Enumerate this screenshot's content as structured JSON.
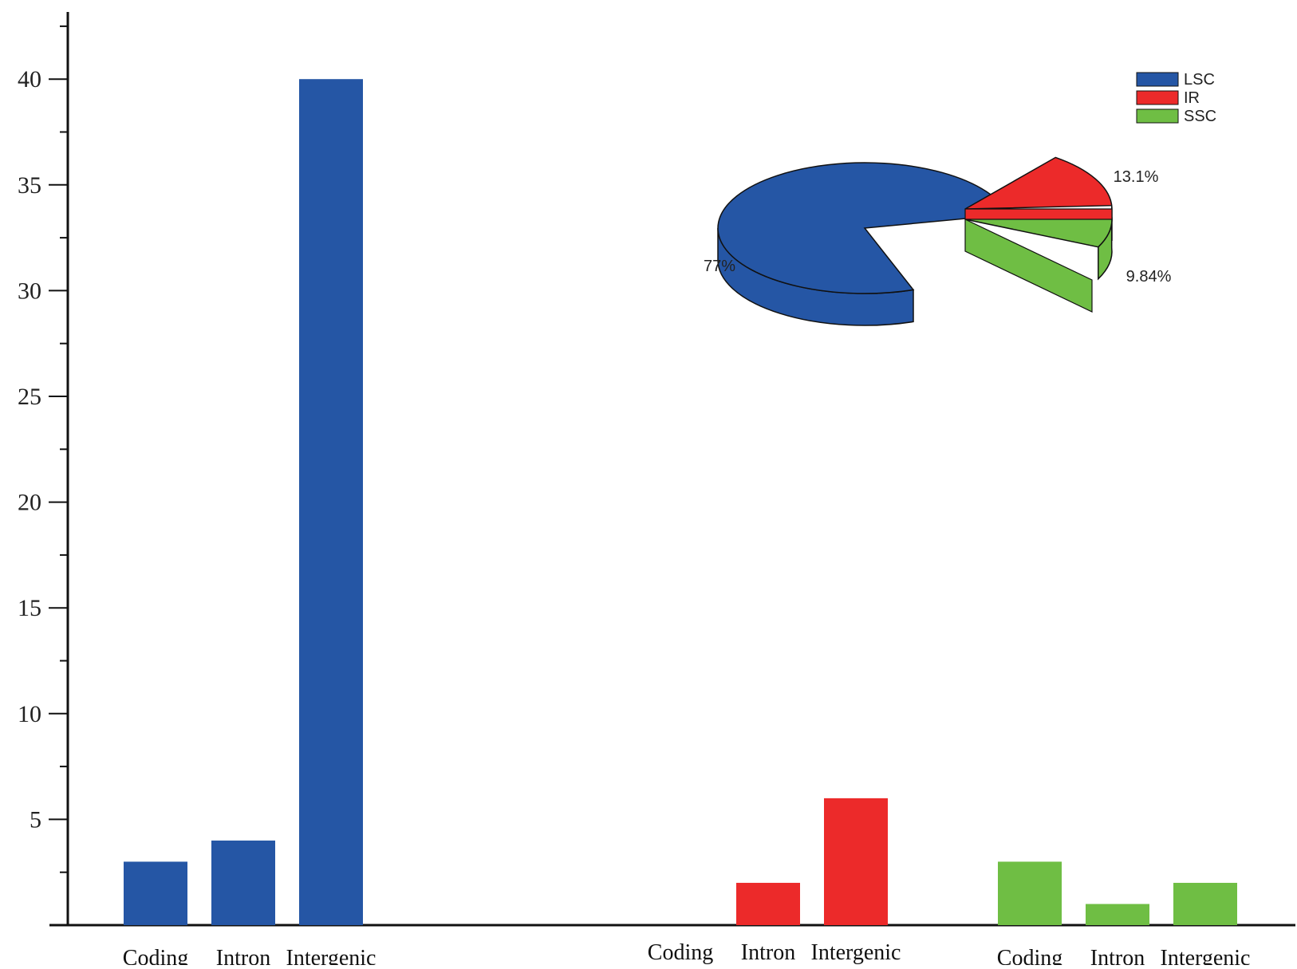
{
  "chart_data": [
    {
      "type": "bar",
      "title": "",
      "xlabel": "",
      "ylabel": "",
      "ylim": [
        0,
        43
      ],
      "y_major_ticks": [
        5,
        10,
        15,
        20,
        25,
        30,
        35,
        40
      ],
      "y_minor_tick_step": 2.5,
      "grid": false,
      "groups": [
        {
          "name": "LSC",
          "color": "#2556a5",
          "categories": [
            "Coding",
            "Intron",
            "Intergenic"
          ],
          "values": [
            3,
            4,
            40
          ]
        },
        {
          "name": "IR",
          "color": "#ec2a2a",
          "categories": [
            "Coding",
            "Intron",
            "Intergenic"
          ],
          "values": [
            0,
            2,
            6
          ]
        },
        {
          "name": "SSC",
          "color": "#6fbe44",
          "categories": [
            "Coding",
            "Intron",
            "Intergenic"
          ],
          "values": [
            3,
            1,
            2
          ]
        }
      ]
    },
    {
      "type": "pie",
      "style": "3d-exploded",
      "legend_position": "top-right",
      "slices": [
        {
          "name": "LSC",
          "value": 77,
          "label": "77%",
          "color": "#2556a5"
        },
        {
          "name": "IR",
          "value": 13.1,
          "label": "13.1%",
          "color": "#ec2a2a"
        },
        {
          "name": "SSC",
          "value": 9.84,
          "label": "9.84%",
          "color": "#6fbe44"
        }
      ]
    }
  ]
}
